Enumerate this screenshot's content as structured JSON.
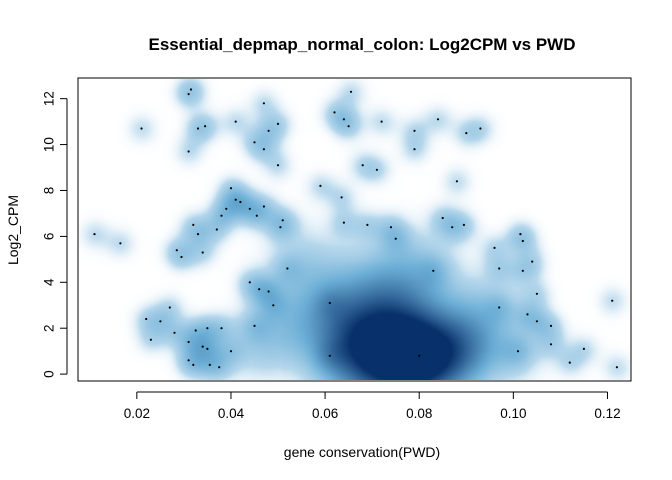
{
  "chart_data": {
    "type": "scatter",
    "style": "smoothed density scatter (blue palette), outlier points drawn as black dots",
    "title": "Essential_depmap_normal_colon: Log2CPM vs PWD",
    "xlabel": "gene conservation(PWD)",
    "ylabel": "Log2_CPM",
    "xlim": [
      0.0075,
      0.125
    ],
    "ylim": [
      -0.3,
      12.9
    ],
    "xticks": [
      0.02,
      0.04,
      0.06,
      0.08,
      0.1,
      0.12
    ],
    "xtick_labels": [
      "0.02",
      "0.04",
      "0.06",
      "0.08",
      "0.10",
      "0.12"
    ],
    "yticks": [
      0,
      2,
      4,
      6,
      8,
      10,
      12
    ],
    "ytick_labels": [
      "0",
      "2",
      "4",
      "6",
      "8",
      "10",
      "12"
    ],
    "colors": {
      "density_low": "#f7fbff",
      "density_high": "#08306b",
      "points": "#000000"
    },
    "points": [
      [
        0.0315,
        12.4
      ],
      [
        0.031,
        12.2
      ],
      [
        0.0655,
        12.3
      ],
      [
        0.047,
        11.8
      ],
      [
        0.062,
        11.4
      ],
      [
        0.021,
        10.7
      ],
      [
        0.033,
        10.7
      ],
      [
        0.0345,
        10.8
      ],
      [
        0.041,
        11.0
      ],
      [
        0.048,
        10.6
      ],
      [
        0.05,
        10.9
      ],
      [
        0.064,
        11.1
      ],
      [
        0.065,
        10.8
      ],
      [
        0.072,
        11.0
      ],
      [
        0.079,
        10.6
      ],
      [
        0.084,
        11.1
      ],
      [
        0.09,
        10.5
      ],
      [
        0.093,
        10.7
      ],
      [
        0.031,
        9.7
      ],
      [
        0.045,
        10.1
      ],
      [
        0.047,
        9.8
      ],
      [
        0.079,
        9.8
      ],
      [
        0.05,
        9.1
      ],
      [
        0.068,
        9.1
      ],
      [
        0.071,
        8.9
      ],
      [
        0.088,
        8.4
      ],
      [
        0.059,
        8.2
      ],
      [
        0.0635,
        7.7
      ],
      [
        0.04,
        8.1
      ],
      [
        0.041,
        7.6
      ],
      [
        0.042,
        7.5
      ],
      [
        0.039,
        7.2
      ],
      [
        0.044,
        7.2
      ],
      [
        0.047,
        7.3
      ],
      [
        0.038,
        6.9
      ],
      [
        0.0455,
        6.9
      ],
      [
        0.051,
        6.7
      ],
      [
        0.032,
        6.5
      ],
      [
        0.033,
        6.1
      ],
      [
        0.037,
        6.3
      ],
      [
        0.0505,
        6.4
      ],
      [
        0.064,
        6.6
      ],
      [
        0.069,
        6.5
      ],
      [
        0.074,
        6.4
      ],
      [
        0.085,
        6.8
      ],
      [
        0.087,
        6.4
      ],
      [
        0.0895,
        6.5
      ],
      [
        0.011,
        6.1
      ],
      [
        0.0165,
        5.7
      ],
      [
        0.0285,
        5.4
      ],
      [
        0.0295,
        5.1
      ],
      [
        0.034,
        5.3
      ],
      [
        0.075,
        5.9
      ],
      [
        0.096,
        5.5
      ],
      [
        0.1015,
        6.1
      ],
      [
        0.102,
        5.8
      ],
      [
        0.104,
        4.9
      ],
      [
        0.102,
        4.5
      ],
      [
        0.097,
        4.6
      ],
      [
        0.083,
        4.5
      ],
      [
        0.052,
        4.6
      ],
      [
        0.044,
        4.0
      ],
      [
        0.046,
        3.7
      ],
      [
        0.048,
        3.6
      ],
      [
        0.049,
        3.0
      ],
      [
        0.061,
        3.1
      ],
      [
        0.097,
        2.9
      ],
      [
        0.103,
        2.6
      ],
      [
        0.105,
        2.3
      ],
      [
        0.108,
        2.1
      ],
      [
        0.027,
        2.9
      ],
      [
        0.025,
        2.3
      ],
      [
        0.022,
        2.4
      ],
      [
        0.0325,
        1.9
      ],
      [
        0.028,
        1.8
      ],
      [
        0.035,
        2.0
      ],
      [
        0.038,
        2.0
      ],
      [
        0.045,
        2.1
      ],
      [
        0.023,
        1.5
      ],
      [
        0.031,
        1.4
      ],
      [
        0.034,
        1.2
      ],
      [
        0.035,
        1.1
      ],
      [
        0.04,
        1.0
      ],
      [
        0.031,
        0.6
      ],
      [
        0.032,
        0.4
      ],
      [
        0.0355,
        0.4
      ],
      [
        0.0375,
        0.3
      ],
      [
        0.061,
        0.8
      ],
      [
        0.08,
        0.8
      ],
      [
        0.101,
        1.0
      ],
      [
        0.108,
        1.3
      ],
      [
        0.112,
        0.5
      ],
      [
        0.105,
        3.5
      ],
      [
        0.121,
        3.2
      ],
      [
        0.122,
        0.3
      ],
      [
        0.115,
        1.1
      ]
    ]
  }
}
